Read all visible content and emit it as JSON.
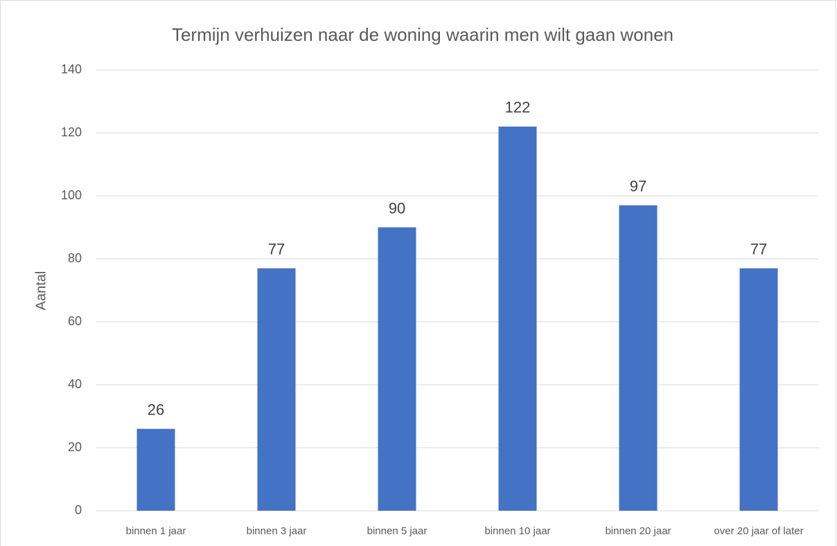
{
  "chart_data": {
    "type": "bar",
    "title": "Termijn verhuizen naar de woning waarin men wilt gaan wonen",
    "y_label": "Aantal",
    "categories": [
      "binnen 1 jaar",
      "binnen 3 jaar",
      "binnen 5 jaar",
      "binnen 10 jaar",
      "binnen 20 jaar",
      "over 20 jaar of later"
    ],
    "values": [
      26,
      77,
      90,
      122,
      97,
      77
    ],
    "color": "#4472c4",
    "ylim": [
      0,
      140
    ],
    "yticks": [
      0,
      20,
      40,
      60,
      80,
      100,
      120,
      140
    ],
    "grid": true
  }
}
